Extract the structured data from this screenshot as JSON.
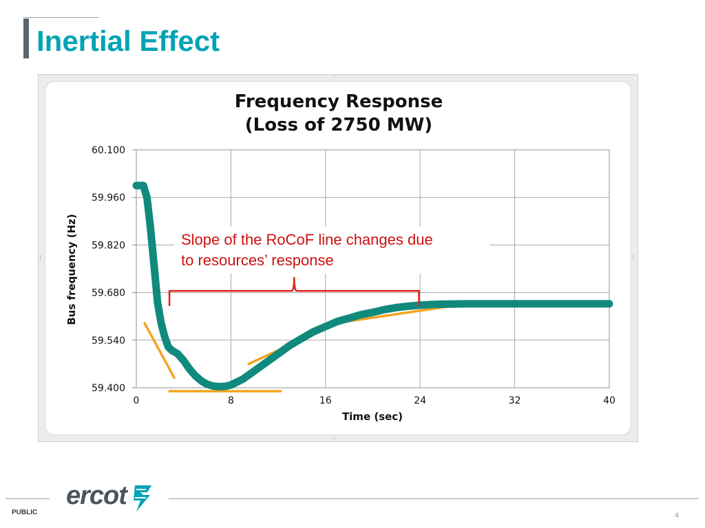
{
  "slide": {
    "title": "Inertial Effect",
    "classification": "PUBLIC",
    "page_number": "4",
    "logo_text": "ercot"
  },
  "colors": {
    "title": "#00a3b4",
    "series": "#0f8a7c",
    "tangent": "#f4a31d",
    "brace": "#e0201b",
    "annotation_text": "#cc1111"
  },
  "chart_data": {
    "type": "line",
    "title": "Frequency Response",
    "subtitle": "(Loss of 2750 MW)",
    "xlabel": "Time (sec)",
    "ylabel": "Bus frequency (Hz)",
    "xlim": [
      0,
      40
    ],
    "ylim": [
      59.4,
      60.1
    ],
    "xticks": [
      0,
      8,
      16,
      24,
      32,
      40
    ],
    "xtick_labels": [
      "0",
      "8",
      "16",
      "24",
      "32",
      "40"
    ],
    "yticks": [
      59.4,
      59.54,
      59.68,
      59.82,
      59.96,
      60.1
    ],
    "ytick_labels": [
      "59.400",
      "59.540",
      "59.680",
      "59.820",
      "59.960",
      "60.100"
    ],
    "grid": true,
    "series": [
      {
        "name": "Bus frequency",
        "x": [
          0,
          0.6,
          0.9,
          1.2,
          1.5,
          1.8,
          2.1,
          2.4,
          2.7,
          3.0,
          3.5,
          4.0,
          4.5,
          5.0,
          5.5,
          6.0,
          6.5,
          7.0,
          7.5,
          8.0,
          9.0,
          10.0,
          11.0,
          12.0,
          13.0,
          14.0,
          15.0,
          16.0,
          17.0,
          18.0,
          19.0,
          20.0,
          21.0,
          22.0,
          23.0,
          24.0,
          25.0,
          26.0,
          28.0,
          30.0,
          34.0,
          38.0,
          40.0
        ],
        "y": [
          59.995,
          59.995,
          59.96,
          59.87,
          59.76,
          59.65,
          59.59,
          59.55,
          59.52,
          59.51,
          59.5,
          59.48,
          59.455,
          59.435,
          59.42,
          59.41,
          59.405,
          59.403,
          59.404,
          59.408,
          59.425,
          59.45,
          59.475,
          59.5,
          59.525,
          59.545,
          59.565,
          59.58,
          59.595,
          59.605,
          59.615,
          59.622,
          59.63,
          59.636,
          59.64,
          59.643,
          59.645,
          59.646,
          59.647,
          59.647,
          59.647,
          59.647,
          59.647
        ]
      }
    ],
    "tangent_lines": [
      {
        "x": [
          0.7,
          3.2
        ],
        "y": [
          59.59,
          59.43
        ]
      },
      {
        "x": [
          2.8,
          12.2
        ],
        "y": [
          59.39,
          59.39
        ]
      },
      {
        "x": [
          9.5,
          15.7
        ],
        "y": [
          59.47,
          59.57
        ]
      },
      {
        "x": [
          17.8,
          28.5
        ],
        "y": [
          59.595,
          59.65
        ]
      }
    ],
    "annotation": {
      "text_line1": "Slope of the RoCoF line changes due",
      "text_line2": "to resources’ response",
      "brace_x": [
        2.8,
        23.9
      ],
      "brace_y": 59.685
    }
  }
}
